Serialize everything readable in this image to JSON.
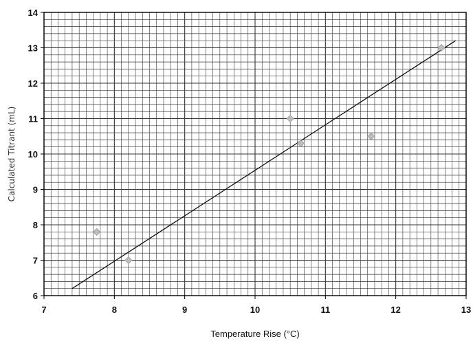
{
  "chart_data": {
    "type": "scatter",
    "title": "",
    "xlabel": "Temperature Rise (°C)",
    "ylabel": "Calculated Titrant (mL)",
    "xlim": [
      7,
      13
    ],
    "ylim": [
      6,
      14
    ],
    "xticks": [
      "7",
      "8",
      "9",
      "10",
      "11",
      "12",
      "13"
    ],
    "yticks": [
      "6",
      "7",
      "8",
      "9",
      "10",
      "11",
      "12",
      "13",
      "14"
    ],
    "grid": true,
    "legend": "none",
    "points": [
      {
        "x": 7.75,
        "y": 7.8
      },
      {
        "x": 8.2,
        "y": 7.0
      },
      {
        "x": 10.5,
        "y": 11.0
      },
      {
        "x": 10.65,
        "y": 10.3
      },
      {
        "x": 11.65,
        "y": 10.5
      },
      {
        "x": 12.65,
        "y": 13.0
      }
    ],
    "trendline": {
      "x": [
        7.4,
        12.85
      ],
      "y": [
        6.2,
        13.2
      ]
    },
    "colors": {
      "grid": "#333333",
      "line": "#111111",
      "marker": "#bdbdbd",
      "axis": "#000000"
    }
  }
}
